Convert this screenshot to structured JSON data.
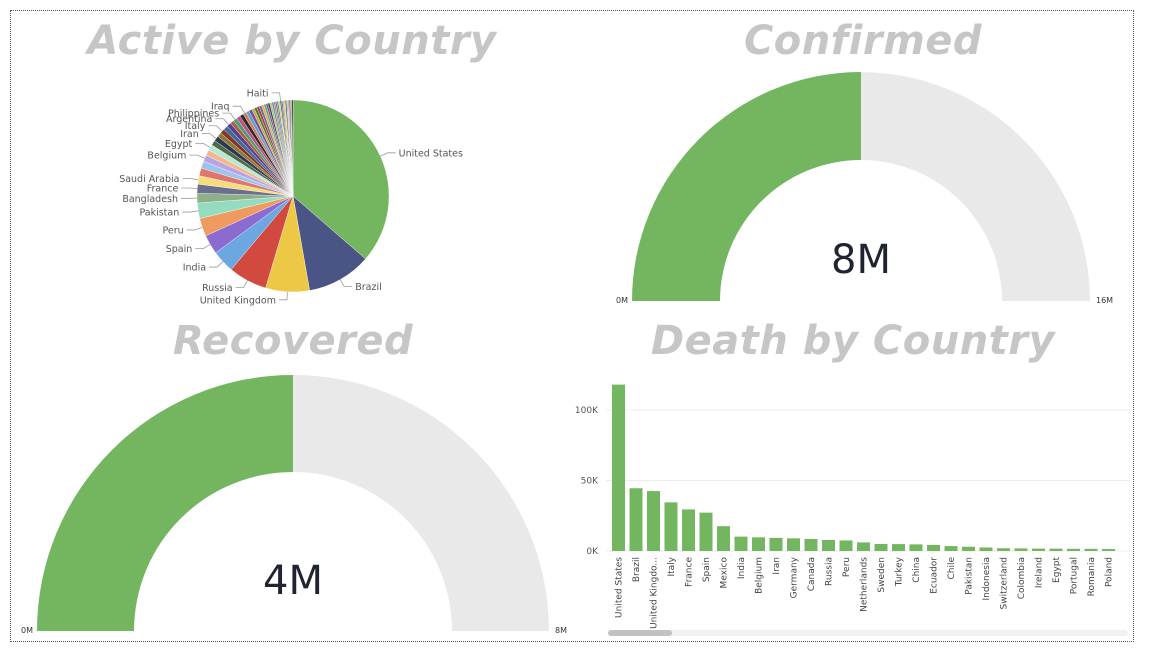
{
  "titles": {
    "active": "Active by Country",
    "confirmed": "Confirmed",
    "recovered": "Recovered",
    "death": "Death by Country"
  },
  "colors": {
    "green": "#74b660",
    "gauge_bg": "#e9e9e9",
    "title": "#c6c6c6"
  },
  "chart_data": [
    {
      "type": "pie",
      "title": "Active by Country",
      "slices": [
        {
          "label": "United States",
          "value": 33.5,
          "color": "#74b660",
          "labeled": true
        },
        {
          "label": "Brazil",
          "value": 10.0,
          "color": "#4a5485",
          "labeled": true
        },
        {
          "label": "United Kingdom",
          "value": 6.8,
          "color": "#ecc846",
          "labeled": true
        },
        {
          "label": "Russia",
          "value": 6.0,
          "color": "#d1493f",
          "labeled": true
        },
        {
          "label": "India",
          "value": 3.5,
          "color": "#6ca7e2",
          "labeled": true
        },
        {
          "label": "Spain",
          "value": 3.0,
          "color": "#8c6bd0",
          "labeled": true
        },
        {
          "label": "Peru",
          "value": 2.8,
          "color": "#ef9a5e",
          "labeled": true
        },
        {
          "label": "Pakistan",
          "value": 2.4,
          "color": "#93dcc0",
          "labeled": true
        },
        {
          "label": "Bangladesh",
          "value": 1.5,
          "color": "#8db087",
          "labeled": true
        },
        {
          "label": "France",
          "value": 1.4,
          "color": "#6a6f8f",
          "labeled": true
        },
        {
          "label": "Saudi Arabia",
          "value": 1.3,
          "color": "#f6dc7c",
          "labeled": true
        },
        {
          "label": "",
          "value": 1.2,
          "color": "#e0756b",
          "labeled": false
        },
        {
          "label": "",
          "value": 1.1,
          "color": "#9ec4ec",
          "labeled": false
        },
        {
          "label": "Belgium",
          "value": 1.0,
          "color": "#b9a3e4",
          "labeled": true
        },
        {
          "label": "",
          "value": 0.9,
          "color": "#f3b98d",
          "labeled": false
        },
        {
          "label": "Egypt",
          "value": 0.9,
          "color": "#b7e8d6",
          "labeled": true
        },
        {
          "label": "",
          "value": 0.8,
          "color": "#4f6b45",
          "labeled": false
        },
        {
          "label": "Iran",
          "value": 0.8,
          "color": "#2f3656",
          "labeled": true
        },
        {
          "label": "",
          "value": 0.7,
          "color": "#8a7a2e",
          "labeled": false
        },
        {
          "label": "Italy",
          "value": 0.7,
          "color": "#8a2f2a",
          "labeled": true
        },
        {
          "label": "",
          "value": 0.7,
          "color": "#3e6b93",
          "labeled": false
        },
        {
          "label": "Argentina",
          "value": 0.7,
          "color": "#5c3f8f",
          "labeled": true
        },
        {
          "label": "",
          "value": 0.6,
          "color": "#a5633a",
          "labeled": false
        },
        {
          "label": "Philippines",
          "value": 0.6,
          "color": "#4a9b80",
          "labeled": true
        },
        {
          "label": "",
          "value": 0.6,
          "color": "#c44f7a",
          "labeled": false
        },
        {
          "label": "",
          "value": 0.6,
          "color": "#2b2b2b",
          "labeled": false
        },
        {
          "label": "Iraq",
          "value": 0.5,
          "color": "#d07b5a",
          "labeled": true
        },
        {
          "label": "",
          "value": 0.5,
          "color": "#58a0c8",
          "labeled": false
        },
        {
          "label": "",
          "value": 0.5,
          "color": "#7d4b9e",
          "labeled": false
        },
        {
          "label": "",
          "value": 0.4,
          "color": "#c4a83a",
          "labeled": false
        },
        {
          "label": "",
          "value": 0.4,
          "color": "#3f7a3a",
          "labeled": false
        },
        {
          "label": "",
          "value": 0.4,
          "color": "#b03a3a",
          "labeled": false
        },
        {
          "label": "",
          "value": 0.4,
          "color": "#6b6b9e",
          "labeled": false
        },
        {
          "label": "",
          "value": 0.35,
          "color": "#e6a84a",
          "labeled": false
        },
        {
          "label": "",
          "value": 0.35,
          "color": "#4ab08a",
          "labeled": false
        },
        {
          "label": "",
          "value": 0.3,
          "color": "#9e3f6b",
          "labeled": false
        },
        {
          "label": "",
          "value": 0.3,
          "color": "#3a3a5e",
          "labeled": false
        },
        {
          "label": "",
          "value": 0.3,
          "color": "#a8c85e",
          "labeled": false
        },
        {
          "label": "",
          "value": 0.3,
          "color": "#5e8fbf",
          "labeled": false
        },
        {
          "label": "",
          "value": 0.25,
          "color": "#bf7a4f",
          "labeled": false
        },
        {
          "label": "",
          "value": 0.25,
          "color": "#7f5fbf",
          "labeled": false
        },
        {
          "label": "",
          "value": 0.25,
          "color": "#4f9f4f",
          "labeled": false
        },
        {
          "label": "",
          "value": 0.25,
          "color": "#d4d47a",
          "labeled": false
        },
        {
          "label": "Haiti",
          "value": 0.2,
          "color": "#2a4a7a",
          "labeled": true
        },
        {
          "label": "",
          "value": 0.2,
          "color": "#a04a4a",
          "labeled": false
        },
        {
          "label": "",
          "value": 0.2,
          "color": "#6abf9f",
          "labeled": false
        },
        {
          "label": "",
          "value": 0.2,
          "color": "#f2c14e",
          "labeled": false
        },
        {
          "label": "",
          "value": 0.2,
          "color": "#444444",
          "labeled": false
        },
        {
          "label": "",
          "value": 0.2,
          "color": "#9fbfdf",
          "labeled": false
        },
        {
          "label": "",
          "value": 0.2,
          "color": "#cf8fbf",
          "labeled": false
        },
        {
          "label": "",
          "value": 0.2,
          "color": "#3f5f3f",
          "labeled": false
        },
        {
          "label": "",
          "value": 0.2,
          "color": "#bfa05f",
          "labeled": false
        },
        {
          "label": "",
          "value": 0.2,
          "color": "#1f1f3f",
          "labeled": false
        }
      ]
    },
    {
      "type": "gauge",
      "title": "Confirmed",
      "value": 8,
      "min": 0,
      "max": 16,
      "value_label": "8M",
      "min_label": "0M",
      "max_label": "16M"
    },
    {
      "type": "gauge",
      "title": "Recovered",
      "value": 4,
      "min": 0,
      "max": 8,
      "value_label": "4M",
      "min_label": "0M",
      "max_label": "8M"
    },
    {
      "type": "bar",
      "title": "Death by Country",
      "categories": [
        "United States",
        "Brazil",
        "United Kingdo...",
        "Italy",
        "France",
        "Spain",
        "Mexico",
        "India",
        "Belgium",
        "Iran",
        "Germany",
        "Canada",
        "Russia",
        "Peru",
        "Netherlands",
        "Sweden",
        "Turkey",
        "China",
        "Ecuador",
        "Chile",
        "Pakistan",
        "Indonesia",
        "Switzerland",
        "Colombia",
        "Ireland",
        "Egypt",
        "Portugal",
        "Romania",
        "Poland"
      ],
      "values": [
        118000,
        44500,
        42500,
        34500,
        29500,
        27200,
        17600,
        10200,
        9700,
        9300,
        9000,
        8500,
        7800,
        7500,
        6100,
        5000,
        4900,
        4700,
        4300,
        3500,
        3000,
        2500,
        1950,
        1850,
        1720,
        1700,
        1550,
        1550,
        1400
      ],
      "yticks": [
        0,
        50000,
        100000
      ],
      "ytick_labels": [
        "0K",
        "50K",
        "100K"
      ],
      "ylim": [
        0,
        125000
      ],
      "grid": true
    }
  ]
}
